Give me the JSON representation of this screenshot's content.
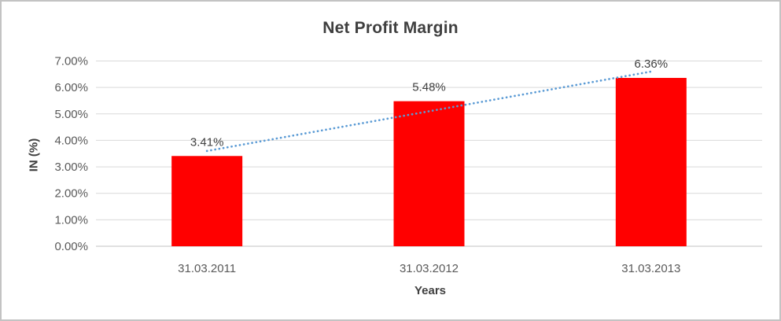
{
  "chart_data": {
    "type": "bar",
    "title": "Net Profit Margin",
    "xlabel": "Years",
    "ylabel": "IN (%)",
    "categories": [
      "31.03.2011",
      "31.03.2012",
      "31.03.2013"
    ],
    "values": [
      3.41,
      5.48,
      6.36
    ],
    "data_labels": [
      "3.41%",
      "5.48%",
      "6.36%"
    ],
    "y_ticks": [
      "0.00%",
      "1.00%",
      "2.00%",
      "3.00%",
      "4.00%",
      "5.00%",
      "6.00%",
      "7.00%"
    ],
    "ylim": [
      0,
      7
    ],
    "y_step": 1,
    "grid": "horizontal",
    "legend": "none",
    "trendline": {
      "type": "linear",
      "style": "dotted",
      "start_value": 3.6,
      "end_value": 6.6
    },
    "colors": {
      "bar": "#ff0000",
      "trendline": "#5b9bd5",
      "gridline": "#d9d9d9",
      "axis_line": "#c0c0c0",
      "title_text": "#3f3f3f",
      "axis_title_text": "#404040",
      "tick_text": "#595959",
      "data_label_text": "#404040",
      "background": "#ffffff",
      "border": "#c3c3c3"
    }
  }
}
